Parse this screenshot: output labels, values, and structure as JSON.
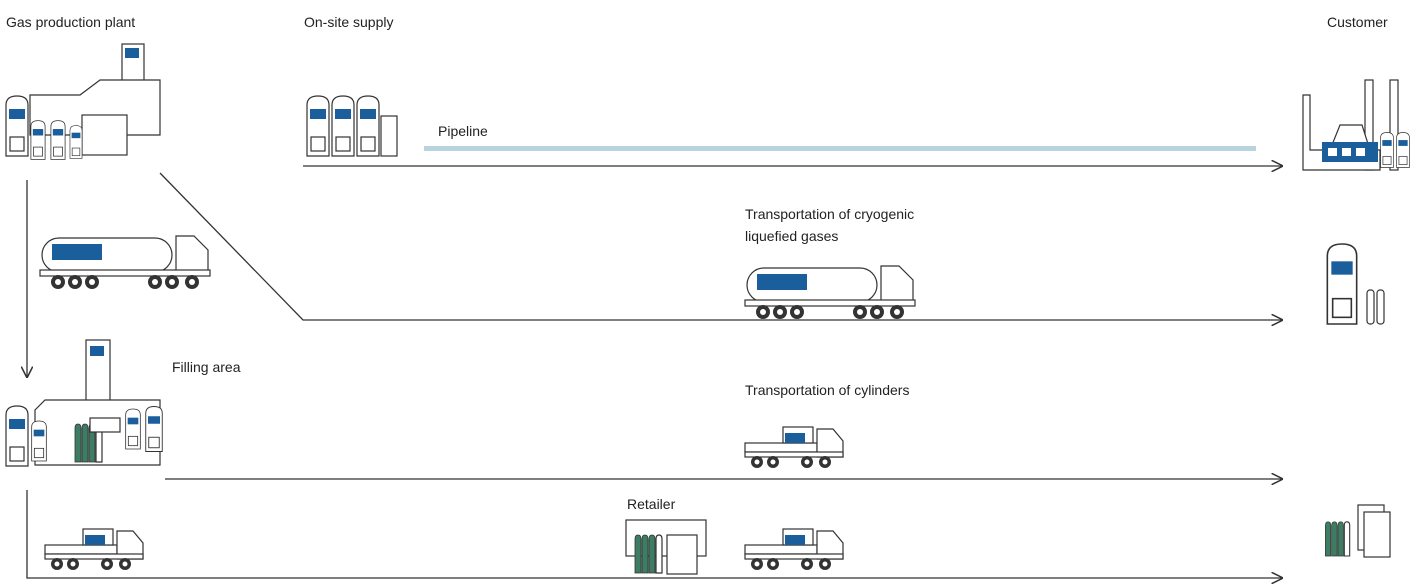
{
  "headers": {
    "plant": "Gas production plant",
    "onsite": "On-site supply",
    "customer": "Customer"
  },
  "labels": {
    "pipeline": "Pipeline",
    "cryogenic": [
      "Transportation of cryogenic",
      "liquefied gases"
    ],
    "filling": "Filling area",
    "cylinders": "Transportation of cylinders",
    "retailer": "Retailer"
  }
}
